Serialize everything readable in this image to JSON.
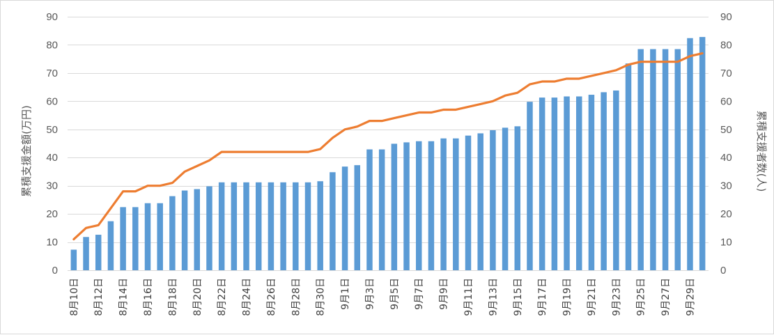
{
  "chart_data": {
    "type": "bar+line",
    "title": "",
    "categories": [
      "8月10日",
      "8月11日",
      "8月12日",
      "8月13日",
      "8月14日",
      "8月15日",
      "8月16日",
      "8月17日",
      "8月18日",
      "8月19日",
      "8月20日",
      "8月21日",
      "8月22日",
      "8月23日",
      "8月24日",
      "8月25日",
      "8月26日",
      "8月27日",
      "8月28日",
      "8月29日",
      "8月30日",
      "8月31日",
      "9月1日",
      "9月2日",
      "9月3日",
      "9月4日",
      "9月5日",
      "9月6日",
      "9月7日",
      "9月8日",
      "9月9日",
      "9月10日",
      "9月11日",
      "9月12日",
      "9月13日",
      "9月14日",
      "9月15日",
      "9月16日",
      "9月17日",
      "9月18日",
      "9月19日",
      "9月20日",
      "9月21日",
      "9月22日",
      "9月23日",
      "9月24日",
      "9月25日",
      "9月26日",
      "9月27日",
      "9月28日",
      "9月29日",
      "9月30日"
    ],
    "x_tick_labels_shown": [
      "8月10日",
      "8月12日",
      "8月14日",
      "8月16日",
      "8月18日",
      "8月20日",
      "8月22日",
      "8月24日",
      "8月26日",
      "8月28日",
      "8月30日",
      "9月1日",
      "9月3日",
      "9月5日",
      "9月7日",
      "9月9日",
      "9月11日",
      "9月13日",
      "9月15日",
      "9月17日",
      "9月19日",
      "9月21日",
      "9月23日",
      "9月25日",
      "9月27日",
      "9月29日"
    ],
    "series": [
      {
        "name": "累積支援金額(万円)",
        "kind": "bar",
        "axis": "left",
        "color": "#5b9bd5",
        "values": [
          7.3,
          11.8,
          12.6,
          17.4,
          22.4,
          22.4,
          23.8,
          23.8,
          26.3,
          28.3,
          28.8,
          29.8,
          31.2,
          31.2,
          31.2,
          31.2,
          31.2,
          31.2,
          31.2,
          31.2,
          31.6,
          34.8,
          36.8,
          37.3,
          42.9,
          42.9,
          44.9,
          45.4,
          45.8,
          45.8,
          46.8,
          46.8,
          47.8,
          48.6,
          49.7,
          50.6,
          51.1,
          59.8,
          61.3,
          61.3,
          61.7,
          61.7,
          62.3,
          63.2,
          63.8,
          73.4,
          78.5,
          78.5,
          78.5,
          78.5,
          82.4,
          82.8
        ]
      },
      {
        "name": "累積支援者数(人)",
        "kind": "line",
        "axis": "right",
        "color": "#ed7d31",
        "values": [
          11,
          15,
          16,
          22,
          28,
          28,
          30,
          30,
          31,
          35,
          37,
          39,
          42,
          42,
          42,
          42,
          42,
          42,
          42,
          42,
          43,
          47,
          50,
          51,
          53,
          53,
          54,
          55,
          56,
          56,
          57,
          57,
          58,
          59,
          60,
          62,
          63,
          66,
          67,
          67,
          68,
          68,
          69,
          70,
          71,
          73,
          74,
          74,
          74,
          74,
          76,
          77
        ]
      }
    ],
    "ylabel": "累積支援金額(万円)",
    "y2label": "累積支援者数(人)",
    "ylim": [
      0,
      90
    ],
    "y2lim": [
      0,
      90
    ],
    "yticks": [
      "0",
      "10",
      "20",
      "30",
      "40",
      "50",
      "60",
      "70",
      "80",
      "90"
    ],
    "y2ticks": [
      "0",
      "10",
      "20",
      "30",
      "40",
      "50",
      "60",
      "70",
      "80",
      "90"
    ],
    "grid": true,
    "legend": "none"
  }
}
